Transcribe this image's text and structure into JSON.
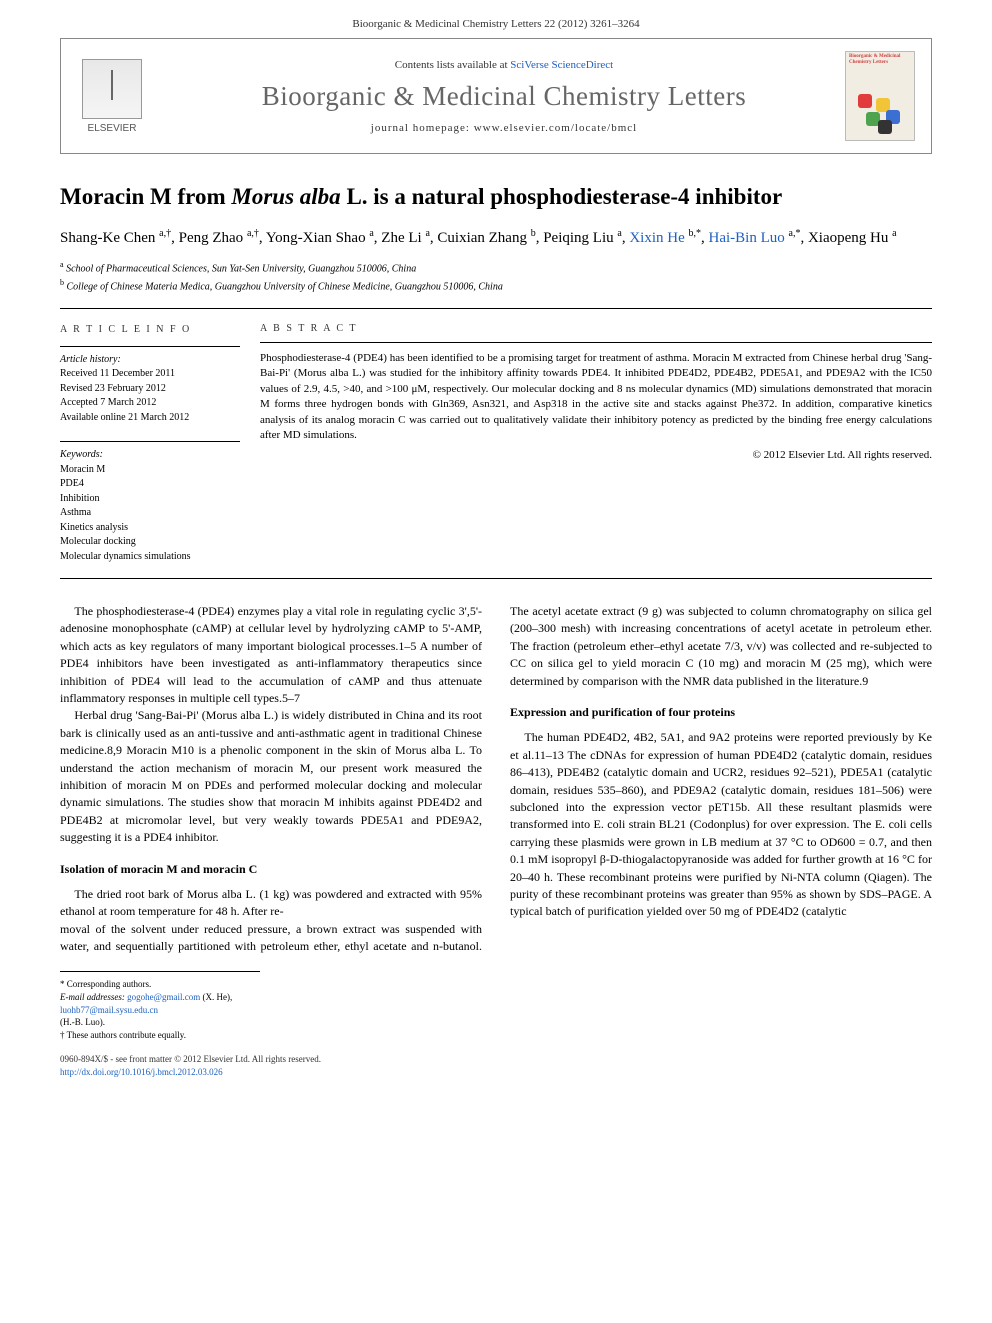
{
  "running_head": "Bioorganic & Medicinal Chemistry Letters 22 (2012) 3261–3264",
  "header": {
    "contents_prefix": "Contents lists available at ",
    "contents_link": "SciVerse ScienceDirect",
    "journal_name": "Bioorganic & Medicinal Chemistry Letters",
    "homepage_label": "journal homepage: www.elsevier.com/locate/bmcl",
    "elsevier_label": "ELSEVIER",
    "cover_title": "Bioorganic & Medicinal Chemistry Letters",
    "cover_colors": [
      "#e23b3b",
      "#f2c438",
      "#4fa34f",
      "#3b6fd1",
      "#333333"
    ]
  },
  "title_parts": {
    "p1": "Moracin M from ",
    "species": "Morus alba",
    "p2": " L. is a natural phosphodiesterase-4 inhibitor"
  },
  "authors_html": "Shang-Ke Chen <span class='sup'>a,†</span>, Peng Zhao <span class='sup'>a,†</span>, Yong-Xian Shao <span class='sup'>a</span>, Zhe Li <span class='sup'>a</span>, Cuixian Zhang <span class='sup'>b</span>, Peiqing Liu <span class='sup'>a</span>, <a href='#'>Xixin He</a> <span class='sup'>b,*</span>, <a href='#'>Hai-Bin Luo</a> <span class='sup'>a,*</span>, Xiaopeng Hu <span class='sup'>a</span>",
  "affiliations": {
    "a": "School of Pharmaceutical Sciences, Sun Yat-Sen University, Guangzhou 510006, China",
    "b": "College of Chinese Materia Medica, Guangzhou University of Chinese Medicine, Guangzhou 510006, China"
  },
  "info": {
    "heading": "A R T I C L E   I N F O",
    "history_label": "Article history:",
    "received": "Received 11 December 2011",
    "revised": "Revised 23 February 2012",
    "accepted": "Accepted 7 March 2012",
    "online": "Available online 21 March 2012",
    "keywords_label": "Keywords:",
    "keywords": [
      "Moracin M",
      "PDE4",
      "Inhibition",
      "Asthma",
      "Kinetics analysis",
      "Molecular docking",
      "Molecular dynamics simulations"
    ]
  },
  "abstract": {
    "heading": "A B S T R A C T",
    "text": "Phosphodiesterase-4 (PDE4) has been identified to be a promising target for treatment of asthma. Moracin M extracted from Chinese herbal drug 'Sang-Bai-Pi' (Morus alba L.) was studied for the inhibitory affinity towards PDE4. It inhibited PDE4D2, PDE4B2, PDE5A1, and PDE9A2 with the IC50 values of 2.9, 4.5, >40, and >100 μM, respectively. Our molecular docking and 8 ns molecular dynamics (MD) simulations demonstrated that moracin M forms three hydrogen bonds with Gln369, Asn321, and Asp318 in the active site and stacks against Phe372. In addition, comparative kinetics analysis of its analog moracin C was carried out to qualitatively validate their inhibitory potency as predicted by the binding free energy calculations after MD simulations.",
    "copyright": "© 2012 Elsevier Ltd. All rights reserved."
  },
  "body": {
    "p1": "The phosphodiesterase-4 (PDE4) enzymes play a vital role in regulating cyclic 3',5'-adenosine monophosphate (cAMP) at cellular level by hydrolyzing cAMP to 5'-AMP, which acts as key regulators of many important biological processes.1–5 A number of PDE4 inhibitors have been investigated as anti-inflammatory therapeutics since inhibition of PDE4 will lead to the accumulation of cAMP and thus attenuate inflammatory responses in multiple cell types.5–7",
    "p2": "Herbal drug 'Sang-Bai-Pi' (Morus alba L.) is widely distributed in China and its root bark is clinically used as an anti-tussive and anti-asthmatic agent in traditional Chinese medicine.8,9 Moracin M10 is a phenolic component in the skin of Morus alba L. To understand the action mechanism of moracin M, our present work measured the inhibition of moracin M on PDEs and performed molecular docking and molecular dynamic simulations. The studies show that moracin M inhibits against PDE4D2 and PDE4B2 at micromolar level, but very weakly towards PDE5A1 and PDE9A2, suggesting it is a PDE4 inhibitor.",
    "h_isolation": "Isolation of moracin M and moracin C",
    "p3": "The dried root bark of Morus alba L. (1 kg) was powdered and extracted with 95% ethanol at room temperature for 48 h. After re-",
    "p4": "moval of the solvent under reduced pressure, a brown extract was suspended with water, and sequentially partitioned with petroleum ether, ethyl acetate and n-butanol. The acetyl acetate extract (9 g) was subjected to column chromatography on silica gel (200–300 mesh) with increasing concentrations of acetyl acetate in petroleum ether. The fraction (petroleum ether–ethyl acetate 7/3, v/v) was collected and re-subjected to CC on silica gel to yield moracin C (10 mg) and moracin M (25 mg), which were determined by comparison with the NMR data published in the literature.9",
    "h_expression": "Expression and purification of four proteins",
    "p5": "The human PDE4D2, 4B2, 5A1, and 9A2 proteins were reported previously by Ke et al.11–13 The cDNAs for expression of human PDE4D2 (catalytic domain, residues 86–413), PDE4B2 (catalytic domain and UCR2, residues 92–521), PDE5A1 (catalytic domain, residues 535–860), and PDE9A2 (catalytic domain, residues 181–506) were subcloned into the expression vector pET15b. All these resultant plasmids were transformed into E. coli strain BL21 (Codonplus) for over expression. The E. coli cells carrying these plasmids were grown in LB medium at 37 °C to OD600 = 0.7, and then 0.1 mM isopropyl β-D-thiogalactopyranoside was added for further growth at 16 °C for 20–40 h. These recombinant proteins were purified by Ni-NTA column (Qiagen). The purity of these recombinant proteins was greater than 95% as shown by SDS–PAGE. A typical batch of purification yielded over 50 mg of PDE4D2 (catalytic"
  },
  "footnotes": {
    "corr": "* Corresponding authors.",
    "email_label": "E-mail addresses: ",
    "email1": "gogohe@gmail.com",
    "email1_who": " (X. He), ",
    "email2": "luohb77@mail.sysu.edu.cn",
    "email2_who": " (H.-B. Luo).",
    "dagger": "† These authors contribute equally."
  },
  "footer": {
    "line1": "0960-894X/$ - see front matter © 2012 Elsevier Ltd. All rights reserved.",
    "doi": "http://dx.doi.org/10.1016/j.bmcl.2012.03.026"
  },
  "colors": {
    "link": "#1d60c1",
    "text": "#000000",
    "rule": "#000000",
    "journal_name": "#666666"
  }
}
